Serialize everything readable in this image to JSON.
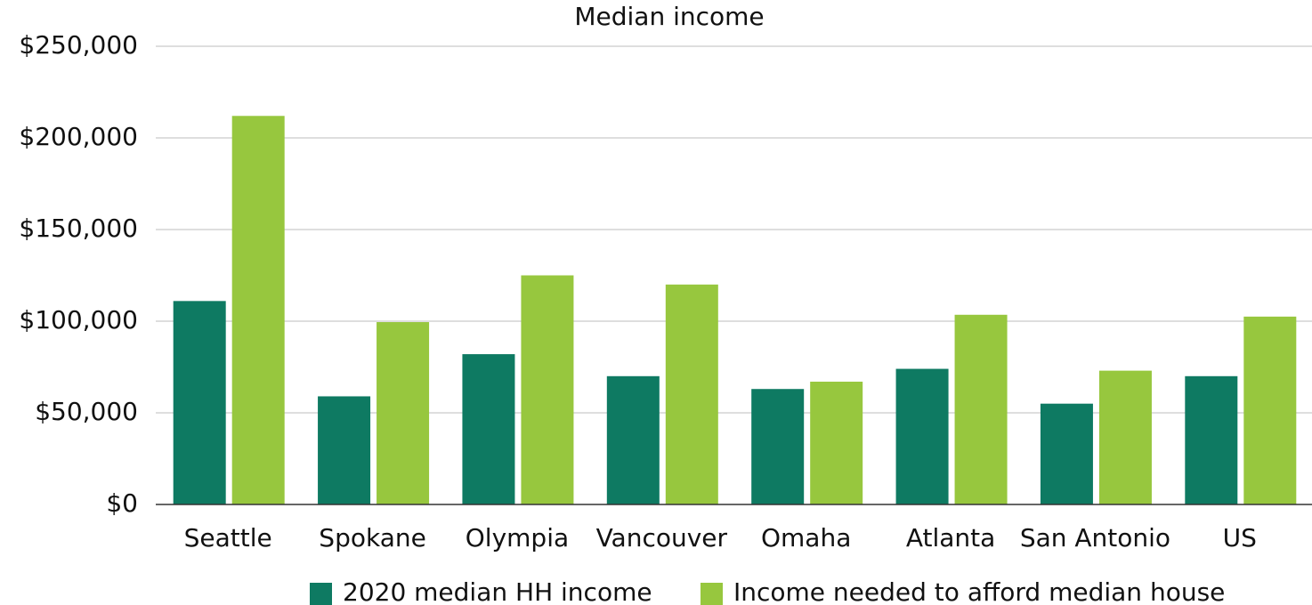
{
  "chart_data": {
    "type": "bar",
    "title": "Median income",
    "categories": [
      "Seattle",
      "Spokane",
      "Olympia",
      "Vancouver",
      "Omaha",
      "Atlanta",
      "San Antonio",
      "US"
    ],
    "series": [
      {
        "name": "2020 median HH income",
        "color": "#0e7a62",
        "values": [
          111000,
          59000,
          82000,
          70000,
          63000,
          74000,
          55000,
          70000
        ]
      },
      {
        "name": "Income needed to afford median house",
        "color": "#97c73e",
        "values": [
          212000,
          99500,
          125000,
          120000,
          67000,
          103500,
          73000,
          102500
        ]
      }
    ],
    "ylim": [
      0,
      250000
    ],
    "yticks": [
      {
        "value": 0,
        "label": "$0"
      },
      {
        "value": 50000,
        "label": "$50,000"
      },
      {
        "value": 100000,
        "label": "$100,000"
      },
      {
        "value": 150000,
        "label": "$150,000"
      },
      {
        "value": 200000,
        "label": "$200,000"
      },
      {
        "value": 250000,
        "label": "$250,000"
      }
    ],
    "grid": true,
    "legend": "bottom"
  }
}
